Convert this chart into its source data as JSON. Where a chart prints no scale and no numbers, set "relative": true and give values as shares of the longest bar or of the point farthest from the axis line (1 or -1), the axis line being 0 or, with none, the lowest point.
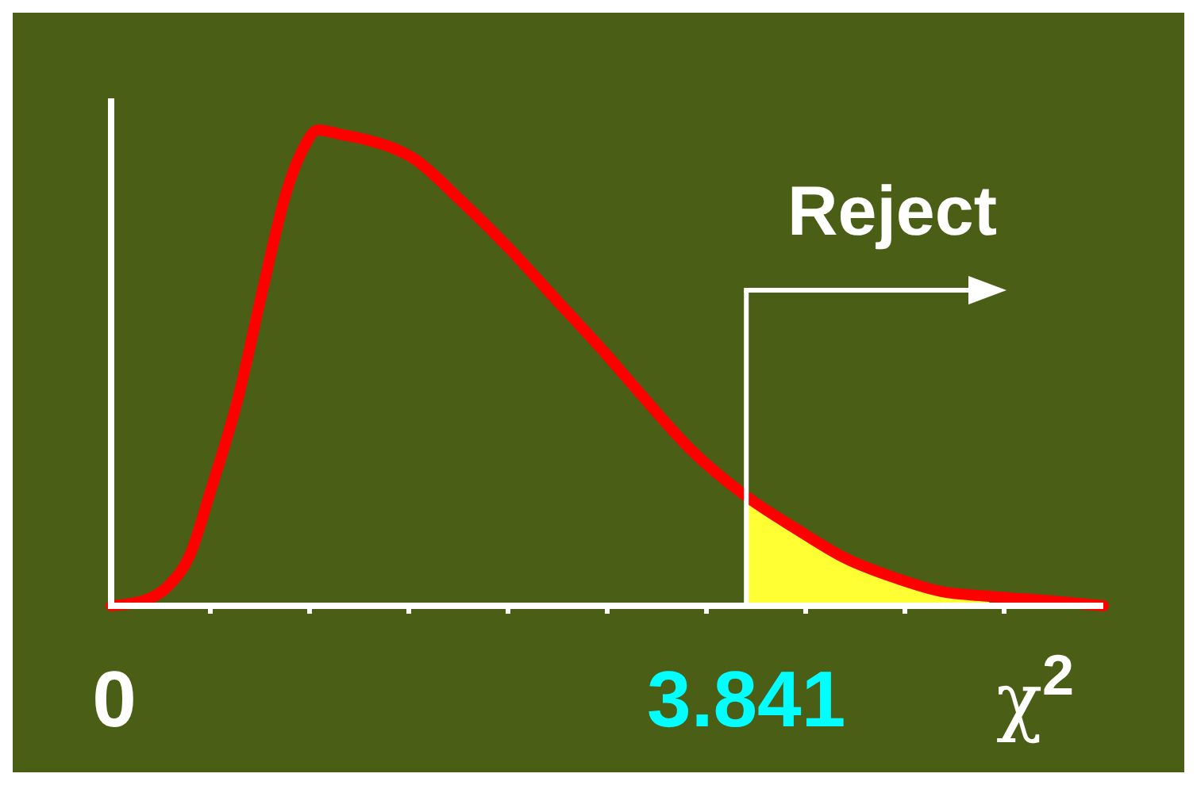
{
  "chart_data": {
    "type": "line",
    "relative": true,
    "xlabel": "χ$^{2}$",
    "xlim": [
      0,
      6
    ],
    "xticks": [
      {
        "value": 0,
        "label": "0"
      },
      {
        "value": 0.6,
        "label": null
      },
      {
        "value": 1.2,
        "label": null
      },
      {
        "value": 1.8,
        "label": null
      },
      {
        "value": 2.4,
        "label": null
      },
      {
        "value": 3,
        "label": null
      },
      {
        "value": 3.6,
        "label": null
      },
      {
        "value": 3.841,
        "label": "3.841"
      },
      {
        "value": 4.2,
        "label": null
      },
      {
        "value": 4.8,
        "label": null
      },
      {
        "value": 5.4,
        "label": null
      }
    ],
    "series": [
      {
        "type": "area",
        "color": "#ffff33",
        "x": [
          3.841,
          4.15,
          4.44,
          4.73,
          5.02,
          5.31
        ],
        "values": [
          0.23,
          0.16,
          0.1,
          0.06,
          0.03,
          0.02
        ]
      },
      {
        "color": "#ff0000",
        "x": [
          0,
          0.19,
          0.34,
          0.48,
          0.6,
          0.77,
          0.92,
          1.06,
          1.16,
          1.25,
          1.4,
          1.54,
          1.83,
          2.12,
          2.41,
          2.7,
          2.99,
          3.19,
          3.5,
          3.841,
          4.15,
          4.44,
          4.73,
          5.02,
          5.31,
          5.69,
          6
        ],
        "values": [
          0,
          0.01,
          0.04,
          0.11,
          0.24,
          0.44,
          0.67,
          0.87,
          0.96,
          1,
          0.99,
          0.98,
          0.94,
          0.85,
          0.75,
          0.64,
          0.53,
          0.45,
          0.33,
          0.23,
          0.16,
          0.1,
          0.06,
          0.03,
          0.02,
          0.01,
          0
        ]
      }
    ],
    "ref_lines": [
      {
        "axis": "x",
        "value": 3.841,
        "label": "Reject",
        "color": "#ffffff"
      }
    ]
  }
}
